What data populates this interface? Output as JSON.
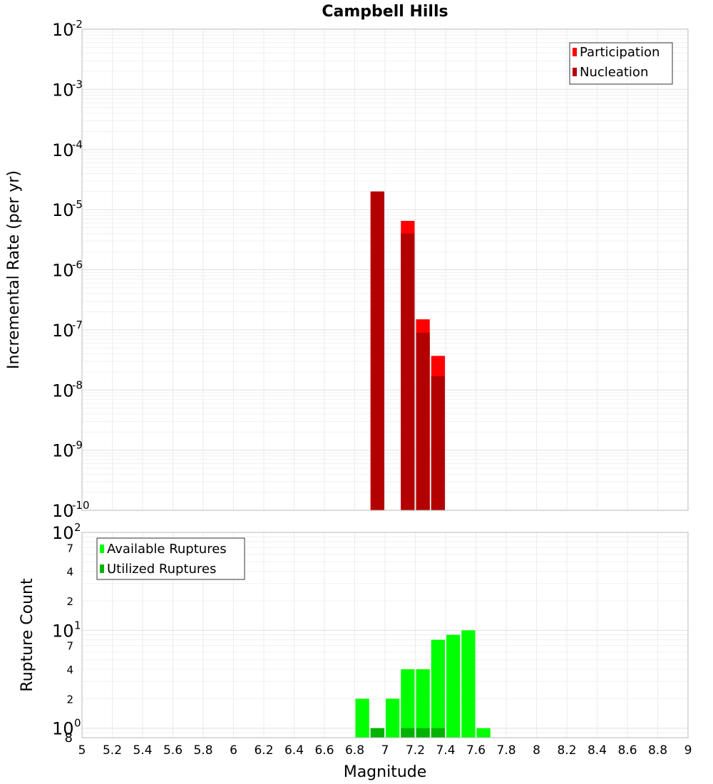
{
  "chart_data": [
    {
      "type": "bar",
      "title": "Campbell Hills",
      "xlabel": "",
      "ylabel": "Incremental Rate (per yr)",
      "yscale": "log",
      "ylim": [
        1e-10,
        0.01
      ],
      "xlim": [
        5,
        9
      ],
      "bin_width": 0.1,
      "y_tick_labels": [
        {
          "base": "10",
          "exp": "-10"
        },
        {
          "base": "10",
          "exp": "-9"
        },
        {
          "base": "10",
          "exp": "-8"
        },
        {
          "base": "10",
          "exp": "-7"
        },
        {
          "base": "10",
          "exp": "-6"
        },
        {
          "base": "10",
          "exp": "-5"
        },
        {
          "base": "10",
          "exp": "-4"
        },
        {
          "base": "10",
          "exp": "-3"
        },
        {
          "base": "10",
          "exp": "-2"
        }
      ],
      "legend": {
        "placement": "top-right",
        "entries": [
          {
            "label": "Participation",
            "color": "#ff0000"
          },
          {
            "label": "Nucleation",
            "color": "#b30000"
          }
        ]
      },
      "grid": true,
      "series": [
        {
          "name": "Participation",
          "color": "#ff0000",
          "x": [
            6.95,
            7.15,
            7.25,
            7.35
          ],
          "values": [
            2e-05,
            6.5e-06,
            1.5e-07,
            3.7e-08
          ]
        },
        {
          "name": "Nucleation",
          "color": "#b30000",
          "x": [
            6.95,
            7.15,
            7.25,
            7.35
          ],
          "values": [
            2e-05,
            4e-06,
            9e-08,
            1.7e-08
          ]
        }
      ]
    },
    {
      "type": "bar",
      "title": "",
      "xlabel": "Magnitude",
      "ylabel": "Rupture Count",
      "yscale": "log",
      "ylim": [
        0.8,
        100
      ],
      "xlim": [
        5,
        9
      ],
      "bin_width": 0.1,
      "x_tick_labels": [
        "5",
        "5.2",
        "5.4",
        "5.6",
        "5.8",
        "6",
        "6.2",
        "6.4",
        "6.6",
        "6.8",
        "7",
        "7.2",
        "7.4",
        "7.6",
        "7.8",
        "8",
        "8.2",
        "8.4",
        "8.6",
        "8.8",
        "9"
      ],
      "y_major_ticks": [
        {
          "base": "10",
          "exp": "0"
        },
        {
          "base": "10",
          "exp": "1"
        },
        {
          "base": "10",
          "exp": "2"
        }
      ],
      "y_minor_ticks": [
        {
          "value": 0.8,
          "label": "8"
        },
        {
          "value": 2,
          "label": "2"
        },
        {
          "value": 4,
          "label": "4"
        },
        {
          "value": 7,
          "label": "7"
        },
        {
          "value": 20,
          "label": "2"
        },
        {
          "value": 40,
          "label": "4"
        },
        {
          "value": 70,
          "label": "7"
        }
      ],
      "legend": {
        "placement": "top-left",
        "entries": [
          {
            "label": "Available Ruptures",
            "color": "#00ff00"
          },
          {
            "label": "Utilized Ruptures",
            "color": "#00b300"
          }
        ]
      },
      "grid": true,
      "series": [
        {
          "name": "Available Ruptures",
          "color": "#00ff00",
          "x": [
            6.85,
            6.95,
            7.05,
            7.15,
            7.25,
            7.35,
            7.45,
            7.55,
            7.65
          ],
          "values": [
            2,
            1,
            2,
            4,
            4,
            8,
            9,
            10,
            1
          ]
        },
        {
          "name": "Utilized Ruptures",
          "color": "#00b300",
          "x": [
            6.95,
            7.15,
            7.25,
            7.35
          ],
          "values": [
            1,
            1,
            1,
            1
          ]
        }
      ]
    }
  ]
}
